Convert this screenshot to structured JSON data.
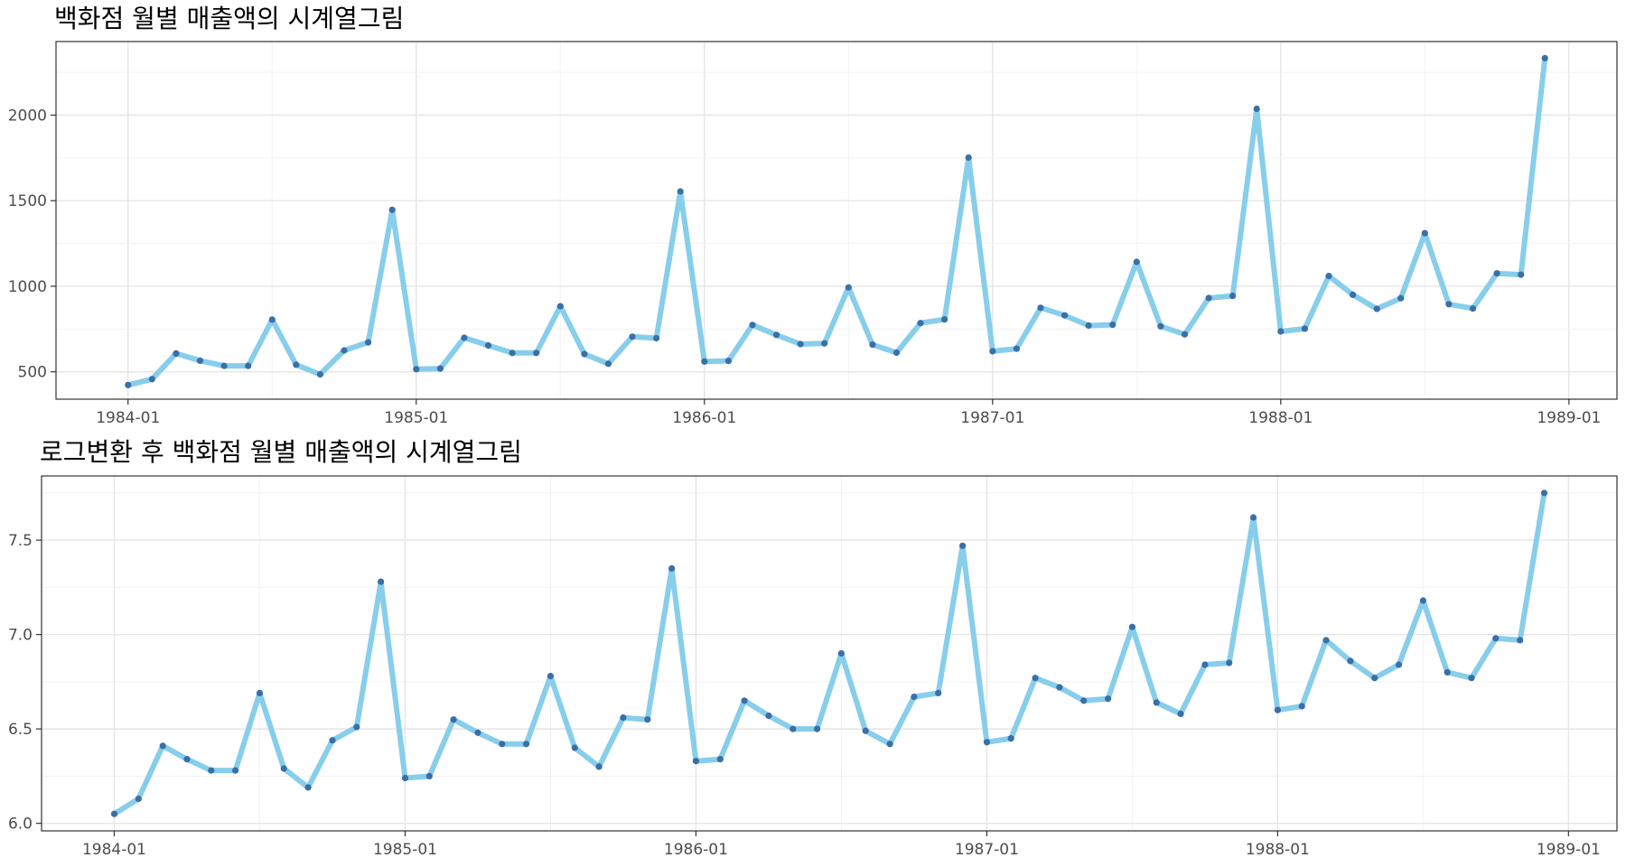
{
  "chart_data": [
    {
      "type": "line",
      "title": "백화점 월별 매출액의 시계열그림",
      "xlabel": "",
      "ylabel": "",
      "x_ticks": [
        "1984-01",
        "1985-01",
        "1986-01",
        "1987-01",
        "1988-01",
        "1989-01"
      ],
      "y_ticks": [
        "500",
        "1000",
        "1500",
        "2000"
      ],
      "x_range": [
        "1983-10",
        "1989-03"
      ],
      "ylim": [
        340,
        2430
      ],
      "grid": true,
      "line_color": "#87ceeb",
      "point_color": "#3a6fa8",
      "x": [
        "1984-01",
        "1984-02",
        "1984-03",
        "1984-04",
        "1984-05",
        "1984-06",
        "1984-07",
        "1984-08",
        "1984-09",
        "1984-10",
        "1984-11",
        "1984-12",
        "1985-01",
        "1985-02",
        "1985-03",
        "1985-04",
        "1985-05",
        "1985-06",
        "1985-07",
        "1985-08",
        "1985-09",
        "1985-10",
        "1985-11",
        "1985-12",
        "1986-01",
        "1986-02",
        "1986-03",
        "1986-04",
        "1986-05",
        "1986-06",
        "1986-07",
        "1986-08",
        "1986-09",
        "1986-10",
        "1986-11",
        "1986-12",
        "1987-01",
        "1987-02",
        "1987-03",
        "1987-04",
        "1987-05",
        "1987-06",
        "1987-07",
        "1987-08",
        "1987-09",
        "1987-10",
        "1987-11",
        "1987-12",
        "1988-01",
        "1988-02",
        "1988-03",
        "1988-04",
        "1988-05",
        "1988-06",
        "1988-07",
        "1988-08",
        "1988-09",
        "1988-10",
        "1988-11",
        "1988-12"
      ],
      "series": [
        {
          "values": [
            423,
            457,
            607,
            565,
            535,
            535,
            805,
            541,
            485,
            625,
            672,
            1447,
            515,
            519,
            699,
            654,
            610,
            610,
            883,
            604,
            547,
            705,
            696,
            1554,
            560,
            564,
            774,
            716,
            662,
            666,
            993,
            659,
            612,
            785,
            806,
            1752,
            620,
            635,
            874,
            830,
            770,
            775,
            1142,
            766,
            719,
            931,
            944,
            2037,
            736,
            752,
            1060,
            950,
            868,
            930,
            1310,
            895,
            870,
            1075,
            1068,
            2333
          ]
        }
      ]
    },
    {
      "type": "line",
      "title": "로그변환 후 백화점 월별 매출액의 시계열그림",
      "xlabel": "",
      "ylabel": "",
      "x_ticks": [
        "1984-01",
        "1985-01",
        "1986-01",
        "1987-01",
        "1988-01",
        "1989-01"
      ],
      "y_ticks": [
        "6.0",
        "6.5",
        "7.0",
        "7.5"
      ],
      "x_range": [
        "1983-10",
        "1989-03"
      ],
      "ylim": [
        5.96,
        7.84
      ],
      "grid": true,
      "line_color": "#87ceeb",
      "point_color": "#3a6fa8",
      "x": [
        "1984-01",
        "1984-02",
        "1984-03",
        "1984-04",
        "1984-05",
        "1984-06",
        "1984-07",
        "1984-08",
        "1984-09",
        "1984-10",
        "1984-11",
        "1984-12",
        "1985-01",
        "1985-02",
        "1985-03",
        "1985-04",
        "1985-05",
        "1985-06",
        "1985-07",
        "1985-08",
        "1985-09",
        "1985-10",
        "1985-11",
        "1985-12",
        "1986-01",
        "1986-02",
        "1986-03",
        "1986-04",
        "1986-05",
        "1986-06",
        "1986-07",
        "1986-08",
        "1986-09",
        "1986-10",
        "1986-11",
        "1986-12",
        "1987-01",
        "1987-02",
        "1987-03",
        "1987-04",
        "1987-05",
        "1987-06",
        "1987-07",
        "1987-08",
        "1987-09",
        "1987-10",
        "1987-11",
        "1987-12",
        "1988-01",
        "1988-02",
        "1988-03",
        "1988-04",
        "1988-05",
        "1988-06",
        "1988-07",
        "1988-08",
        "1988-09",
        "1988-10",
        "1988-11",
        "1988-12"
      ],
      "series": [
        {
          "values": [
            6.05,
            6.13,
            6.41,
            6.34,
            6.28,
            6.28,
            6.69,
            6.29,
            6.19,
            6.44,
            6.51,
            7.28,
            6.24,
            6.25,
            6.55,
            6.48,
            6.42,
            6.42,
            6.78,
            6.4,
            6.3,
            6.56,
            6.55,
            7.35,
            6.33,
            6.34,
            6.65,
            6.57,
            6.5,
            6.5,
            6.9,
            6.49,
            6.42,
            6.67,
            6.69,
            7.47,
            6.43,
            6.45,
            6.77,
            6.72,
            6.65,
            6.66,
            7.04,
            6.64,
            6.58,
            6.84,
            6.85,
            7.62,
            6.6,
            6.62,
            6.97,
            6.86,
            6.77,
            6.84,
            7.18,
            6.8,
            6.77,
            6.98,
            6.97,
            7.75
          ]
        }
      ]
    }
  ]
}
